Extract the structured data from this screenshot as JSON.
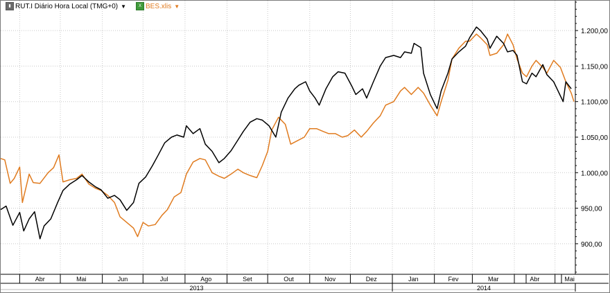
{
  "legend": {
    "items": [
      {
        "label": "RUT.I Diário Hora Local (TMG+0)",
        "icon": "chart-series-icon",
        "color": "#000000",
        "dropdown": "▼"
      },
      {
        "label": "BES.xlis",
        "icon": "excel-series-icon",
        "color": "#e07b1f",
        "dropdown": "▼"
      }
    ]
  },
  "colors": {
    "rut": "#000000",
    "bes": "#e07b1f",
    "grid": "#c8c8c8",
    "frame": "#7a7a7a"
  },
  "chart_data": {
    "type": "line",
    "title": "",
    "grid": true,
    "legend_position": "top-left",
    "x_range": [
      "2013-03-18",
      "2014-05-16"
    ],
    "ylim": [
      857,
      1242
    ],
    "y_axis_side": "right",
    "y_ticks": [
      "900,00",
      "950,00",
      "1.000,00",
      "1.050,00",
      "1.100,00",
      "1.150,00",
      "1.200,00"
    ],
    "y_tick_values": [
      900,
      950,
      1000,
      1050,
      1100,
      1150,
      1200
    ],
    "x_months": [
      "Abr",
      "Mai",
      "Jun",
      "Jul",
      "Ago",
      "Set",
      "Out",
      "Nov",
      "Dez",
      "Jan",
      "Fev",
      "Mar",
      "Abr",
      "Mai"
    ],
    "x_month_starts": [
      "2013-04-01",
      "2013-05-01",
      "2013-06-01",
      "2013-07-01",
      "2013-08-01",
      "2013-09-01",
      "2013-10-01",
      "2013-11-01",
      "2013-12-01",
      "2014-01-01",
      "2014-02-01",
      "2014-03-01",
      "2014-04-01",
      "2014-05-01"
    ],
    "x_years": [
      "2013",
      "2014"
    ],
    "year_boundary": "2014-01-01",
    "series": [
      {
        "name": "RUT.I Diário Hora Local (TMG+0)",
        "color": "#000000",
        "points": [
          [
            "2013-03-18",
            948
          ],
          [
            "2013-03-22",
            953
          ],
          [
            "2013-03-27",
            926
          ],
          [
            "2013-04-01",
            944
          ],
          [
            "2013-04-04",
            918
          ],
          [
            "2013-04-08",
            935
          ],
          [
            "2013-04-12",
            945
          ],
          [
            "2013-04-16",
            907
          ],
          [
            "2013-04-19",
            925
          ],
          [
            "2013-04-24",
            935
          ],
          [
            "2013-04-29",
            958
          ],
          [
            "2013-05-03",
            975
          ],
          [
            "2013-05-08",
            984
          ],
          [
            "2013-05-13",
            990
          ],
          [
            "2013-05-17",
            996
          ],
          [
            "2013-05-22",
            987
          ],
          [
            "2013-05-27",
            980
          ],
          [
            "2013-05-31",
            976
          ],
          [
            "2013-06-05",
            964
          ],
          [
            "2013-06-10",
            968
          ],
          [
            "2013-06-14",
            962
          ],
          [
            "2013-06-19",
            947
          ],
          [
            "2013-06-24",
            958
          ],
          [
            "2013-06-28",
            985
          ],
          [
            "2013-07-03",
            994
          ],
          [
            "2013-07-08",
            1010
          ],
          [
            "2013-07-12",
            1024
          ],
          [
            "2013-07-17",
            1042
          ],
          [
            "2013-07-22",
            1050
          ],
          [
            "2013-07-26",
            1053
          ],
          [
            "2013-07-31",
            1050
          ],
          [
            "2013-08-02",
            1066
          ],
          [
            "2013-08-07",
            1055
          ],
          [
            "2013-08-12",
            1062
          ],
          [
            "2013-08-16",
            1040
          ],
          [
            "2013-08-21",
            1030
          ],
          [
            "2013-08-26",
            1014
          ],
          [
            "2013-08-30",
            1020
          ],
          [
            "2013-09-04",
            1031
          ],
          [
            "2013-09-09",
            1046
          ],
          [
            "2013-09-13",
            1058
          ],
          [
            "2013-09-18",
            1071
          ],
          [
            "2013-09-23",
            1076
          ],
          [
            "2013-09-27",
            1074
          ],
          [
            "2013-10-02",
            1066
          ],
          [
            "2013-10-07",
            1050
          ],
          [
            "2013-10-11",
            1085
          ],
          [
            "2013-10-16",
            1105
          ],
          [
            "2013-10-21",
            1118
          ],
          [
            "2013-10-24",
            1123
          ],
          [
            "2013-10-29",
            1128
          ],
          [
            "2013-11-01",
            1115
          ],
          [
            "2013-11-05",
            1105
          ],
          [
            "2013-11-08",
            1095
          ],
          [
            "2013-11-13",
            1118
          ],
          [
            "2013-11-18",
            1135
          ],
          [
            "2013-11-22",
            1142
          ],
          [
            "2013-11-27",
            1140
          ],
          [
            "2013-12-02",
            1122
          ],
          [
            "2013-12-05",
            1110
          ],
          [
            "2013-12-10",
            1118
          ],
          [
            "2013-12-13",
            1105
          ],
          [
            "2013-12-18",
            1128
          ],
          [
            "2013-12-23",
            1150
          ],
          [
            "2013-12-27",
            1162
          ],
          [
            "2014-01-02",
            1165
          ],
          [
            "2014-01-07",
            1162
          ],
          [
            "2014-01-10",
            1170
          ],
          [
            "2014-01-15",
            1168
          ],
          [
            "2014-01-17",
            1182
          ],
          [
            "2014-01-22",
            1176
          ],
          [
            "2014-01-24",
            1140
          ],
          [
            "2014-01-29",
            1110
          ],
          [
            "2014-02-03",
            1090
          ],
          [
            "2014-02-06",
            1115
          ],
          [
            "2014-02-11",
            1140
          ],
          [
            "2014-02-14",
            1160
          ],
          [
            "2014-02-19",
            1170
          ],
          [
            "2014-02-24",
            1178
          ],
          [
            "2014-02-27",
            1190
          ],
          [
            "2014-03-04",
            1205
          ],
          [
            "2014-03-07",
            1200
          ],
          [
            "2014-03-12",
            1188
          ],
          [
            "2014-03-14",
            1175
          ],
          [
            "2014-03-19",
            1192
          ],
          [
            "2014-03-24",
            1182
          ],
          [
            "2014-03-27",
            1170
          ],
          [
            "2014-03-31",
            1172
          ],
          [
            "2014-04-03",
            1165
          ],
          [
            "2014-04-07",
            1128
          ],
          [
            "2014-04-10",
            1125
          ],
          [
            "2014-04-14",
            1140
          ],
          [
            "2014-04-17",
            1135
          ],
          [
            "2014-04-22",
            1152
          ],
          [
            "2014-04-25",
            1138
          ],
          [
            "2014-04-30",
            1128
          ],
          [
            "2014-05-05",
            1108
          ],
          [
            "2014-05-07",
            1100
          ],
          [
            "2014-05-09",
            1128
          ],
          [
            "2014-05-13",
            1118
          ]
        ]
      },
      {
        "name": "BES.xlis",
        "color": "#e07b1f",
        "points": [
          [
            "2013-03-18",
            1020
          ],
          [
            "2013-03-21",
            1018
          ],
          [
            "2013-03-25",
            985
          ],
          [
            "2013-03-28",
            992
          ],
          [
            "2013-04-01",
            1008
          ],
          [
            "2013-04-03",
            958
          ],
          [
            "2013-04-08",
            998
          ],
          [
            "2013-04-11",
            986
          ],
          [
            "2013-04-16",
            985
          ],
          [
            "2013-04-22",
            1000
          ],
          [
            "2013-04-26",
            1007
          ],
          [
            "2013-04-30",
            1025
          ],
          [
            "2013-05-03",
            987
          ],
          [
            "2013-05-08",
            990
          ],
          [
            "2013-05-13",
            992
          ],
          [
            "2013-05-17",
            998
          ],
          [
            "2013-05-22",
            984
          ],
          [
            "2013-05-27",
            978
          ],
          [
            "2013-05-31",
            975
          ],
          [
            "2013-06-05",
            968
          ],
          [
            "2013-06-10",
            958
          ],
          [
            "2013-06-14",
            938
          ],
          [
            "2013-06-19",
            930
          ],
          [
            "2013-06-24",
            922
          ],
          [
            "2013-06-27",
            910
          ],
          [
            "2013-07-01",
            930
          ],
          [
            "2013-07-05",
            925
          ],
          [
            "2013-07-10",
            927
          ],
          [
            "2013-07-15",
            940
          ],
          [
            "2013-07-19",
            948
          ],
          [
            "2013-07-24",
            966
          ],
          [
            "2013-07-29",
            972
          ],
          [
            "2013-08-02",
            998
          ],
          [
            "2013-08-07",
            1015
          ],
          [
            "2013-08-12",
            1020
          ],
          [
            "2013-08-16",
            1018
          ],
          [
            "2013-08-21",
            1000
          ],
          [
            "2013-08-26",
            995
          ],
          [
            "2013-08-30",
            992
          ],
          [
            "2013-09-04",
            998
          ],
          [
            "2013-09-09",
            1005
          ],
          [
            "2013-09-13",
            1000
          ],
          [
            "2013-09-18",
            996
          ],
          [
            "2013-09-23",
            993
          ],
          [
            "2013-09-27",
            1010
          ],
          [
            "2013-10-01",
            1030
          ],
          [
            "2013-10-04",
            1060
          ],
          [
            "2013-10-09",
            1078
          ],
          [
            "2013-10-14",
            1068
          ],
          [
            "2013-10-18",
            1040
          ],
          [
            "2013-10-23",
            1045
          ],
          [
            "2013-10-28",
            1050
          ],
          [
            "2013-11-01",
            1062
          ],
          [
            "2013-11-06",
            1062
          ],
          [
            "2013-11-11",
            1058
          ],
          [
            "2013-11-15",
            1055
          ],
          [
            "2013-11-20",
            1055
          ],
          [
            "2013-11-25",
            1050
          ],
          [
            "2013-11-29",
            1052
          ],
          [
            "2013-12-04",
            1060
          ],
          [
            "2013-12-09",
            1050
          ],
          [
            "2013-12-13",
            1058
          ],
          [
            "2013-12-18",
            1070
          ],
          [
            "2013-12-23",
            1080
          ],
          [
            "2013-12-27",
            1095
          ],
          [
            "2014-01-02",
            1100
          ],
          [
            "2014-01-07",
            1115
          ],
          [
            "2014-01-10",
            1120
          ],
          [
            "2014-01-15",
            1110
          ],
          [
            "2014-01-20",
            1120
          ],
          [
            "2014-01-24",
            1112
          ],
          [
            "2014-01-29",
            1095
          ],
          [
            "2014-02-03",
            1080
          ],
          [
            "2014-02-06",
            1100
          ],
          [
            "2014-02-11",
            1130
          ],
          [
            "2014-02-14",
            1160
          ],
          [
            "2014-02-19",
            1175
          ],
          [
            "2014-02-24",
            1185
          ],
          [
            "2014-02-27",
            1185
          ],
          [
            "2014-03-04",
            1195
          ],
          [
            "2014-03-07",
            1190
          ],
          [
            "2014-03-12",
            1180
          ],
          [
            "2014-03-14",
            1165
          ],
          [
            "2014-03-19",
            1168
          ],
          [
            "2014-03-24",
            1180
          ],
          [
            "2014-03-27",
            1195
          ],
          [
            "2014-03-31",
            1180
          ],
          [
            "2014-04-03",
            1160
          ],
          [
            "2014-04-07",
            1140
          ],
          [
            "2014-04-10",
            1135
          ],
          [
            "2014-04-14",
            1150
          ],
          [
            "2014-04-17",
            1158
          ],
          [
            "2014-04-22",
            1148
          ],
          [
            "2014-04-25",
            1140
          ],
          [
            "2014-04-30",
            1158
          ],
          [
            "2014-05-05",
            1148
          ],
          [
            "2014-05-07",
            1138
          ],
          [
            "2014-05-09",
            1128
          ],
          [
            "2014-05-13",
            1112
          ],
          [
            "2014-05-15",
            1100
          ]
        ]
      }
    ]
  }
}
